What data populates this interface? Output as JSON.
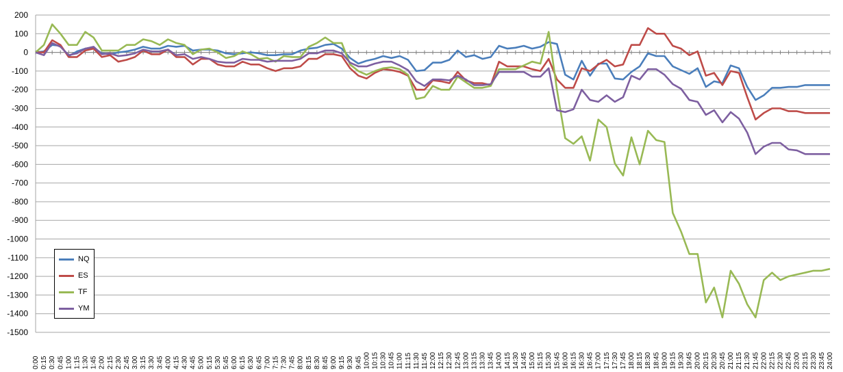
{
  "chart_data": {
    "type": "line",
    "title": "",
    "xlabel": "",
    "ylabel": "",
    "ylim": [
      -1500,
      200
    ],
    "ytick_step": 100,
    "grid": true,
    "legend_position": "bottom-left",
    "x": [
      "0:00",
      "0:15",
      "0:30",
      "0:45",
      "1:00",
      "1:15",
      "1:30",
      "1:45",
      "2:00",
      "2:15",
      "2:30",
      "2:45",
      "3:00",
      "3:15",
      "3:30",
      "3:45",
      "4:00",
      "4:15",
      "4:30",
      "4:45",
      "5:00",
      "5:15",
      "5:30",
      "5:45",
      "6:00",
      "6:15",
      "6:30",
      "6:45",
      "7:00",
      "7:15",
      "7:30",
      "7:45",
      "8:00",
      "8:15",
      "8:30",
      "8:45",
      "9:00",
      "9:15",
      "9:30",
      "9:45",
      "10:00",
      "10:15",
      "10:30",
      "10:45",
      "11:00",
      "11:15",
      "11:30",
      "11:45",
      "12:00",
      "12:15",
      "12:30",
      "12:45",
      "13:00",
      "13:15",
      "13:30",
      "13:45",
      "14:00",
      "14:15",
      "14:30",
      "14:45",
      "15:00",
      "15:15",
      "15:30",
      "15:45",
      "16:00",
      "16:15",
      "16:30",
      "16:45",
      "17:00",
      "17:15",
      "17:30",
      "17:45",
      "18:00",
      "18:15",
      "18:30",
      "18:45",
      "19:00",
      "19:15",
      "19:30",
      "19:45",
      "20:00",
      "20:15",
      "20:30",
      "20:45",
      "21:00",
      "21:15",
      "21:30",
      "21:45",
      "22:00",
      "22:15",
      "22:30",
      "22:45",
      "23:00",
      "23:15",
      "23:30",
      "23:45",
      "24:00"
    ],
    "series": [
      {
        "name": "NQ",
        "color": "#4a7ebb",
        "values": [
          0,
          5,
          40,
          35,
          -20,
          5,
          20,
          25,
          -5,
          -10,
          0,
          5,
          15,
          30,
          20,
          20,
          35,
          30,
          35,
          10,
          15,
          15,
          10,
          -5,
          -10,
          -5,
          0,
          -5,
          -15,
          -15,
          -10,
          -10,
          10,
          20,
          25,
          40,
          45,
          20,
          -30,
          -60,
          -45,
          -35,
          -20,
          -30,
          -20,
          -40,
          -100,
          -95,
          -55,
          -55,
          -40,
          10,
          -25,
          -15,
          -35,
          -25,
          35,
          20,
          25,
          35,
          20,
          30,
          55,
          45,
          -120,
          -145,
          -45,
          -125,
          -60,
          -60,
          -140,
          -145,
          -105,
          -75,
          -5,
          -20,
          -20,
          -75,
          -95,
          -115,
          -85,
          -185,
          -155,
          -165,
          -70,
          -85,
          -185,
          -255,
          -230,
          -190,
          -190,
          -185,
          -185,
          -175,
          -175,
          -175,
          -175
        ]
      },
      {
        "name": "ES",
        "color": "#be4b48",
        "values": [
          0,
          0,
          65,
          40,
          -25,
          -25,
          10,
          20,
          -25,
          -15,
          -50,
          -40,
          -25,
          10,
          -10,
          -10,
          15,
          -25,
          -25,
          -65,
          -35,
          -35,
          -65,
          -75,
          -75,
          -50,
          -65,
          -65,
          -85,
          -100,
          -85,
          -85,
          -75,
          -35,
          -35,
          -10,
          -10,
          -20,
          -85,
          -125,
          -140,
          -110,
          -90,
          -95,
          -105,
          -125,
          -200,
          -200,
          -150,
          -155,
          -165,
          -105,
          -150,
          -165,
          -165,
          -175,
          -50,
          -75,
          -75,
          -75,
          -90,
          -100,
          -35,
          -145,
          -190,
          -190,
          -85,
          -100,
          -65,
          -40,
          -75,
          -65,
          40,
          40,
          130,
          100,
          100,
          35,
          20,
          -15,
          5,
          -125,
          -110,
          -175,
          -100,
          -110,
          -240,
          -360,
          -325,
          -300,
          -300,
          -315,
          -315,
          -325,
          -325,
          -325,
          -325
        ]
      },
      {
        "name": "TF",
        "color": "#98b954",
        "values": [
          0,
          40,
          150,
          100,
          40,
          40,
          110,
          80,
          10,
          10,
          10,
          40,
          40,
          70,
          60,
          40,
          70,
          50,
          40,
          -10,
          15,
          20,
          0,
          -30,
          -20,
          5,
          -10,
          -35,
          -30,
          -50,
          -20,
          -25,
          -25,
          30,
          50,
          80,
          50,
          50,
          -65,
          -100,
          -120,
          -100,
          -85,
          -80,
          -90,
          -120,
          -250,
          -240,
          -180,
          -200,
          -200,
          -130,
          -160,
          -190,
          -190,
          -180,
          -90,
          -90,
          -90,
          -70,
          -50,
          -60,
          110,
          -200,
          -460,
          -490,
          -450,
          -580,
          -360,
          -400,
          -595,
          -660,
          -455,
          -600,
          -420,
          -470,
          -480,
          -860,
          -960,
          -1080,
          -1080,
          -1340,
          -1260,
          -1420,
          -1170,
          -1240,
          -1350,
          -1420,
          -1220,
          -1180,
          -1220,
          -1200,
          -1190,
          -1180,
          -1170,
          -1170,
          -1160
        ]
      },
      {
        "name": "YM",
        "color": "#7d5fa0",
        "values": [
          0,
          -15,
          50,
          30,
          -15,
          -5,
          20,
          30,
          -10,
          -5,
          -20,
          -15,
          -5,
          15,
          5,
          5,
          15,
          -15,
          -10,
          -35,
          -25,
          -35,
          -50,
          -55,
          -55,
          -35,
          -40,
          -40,
          -50,
          -45,
          -45,
          -45,
          -35,
          -5,
          -5,
          10,
          10,
          -5,
          -55,
          -75,
          -75,
          -60,
          -50,
          -50,
          -70,
          -95,
          -155,
          -180,
          -145,
          -145,
          -150,
          -125,
          -145,
          -175,
          -175,
          -170,
          -105,
          -105,
          -105,
          -105,
          -130,
          -130,
          -85,
          -310,
          -320,
          -305,
          -200,
          -255,
          -265,
          -230,
          -265,
          -240,
          -125,
          -145,
          -90,
          -90,
          -120,
          -170,
          -195,
          -255,
          -265,
          -335,
          -310,
          -375,
          -320,
          -355,
          -430,
          -545,
          -505,
          -485,
          -485,
          -520,
          -525,
          -545,
          -545,
          -545,
          -545
        ]
      }
    ]
  }
}
